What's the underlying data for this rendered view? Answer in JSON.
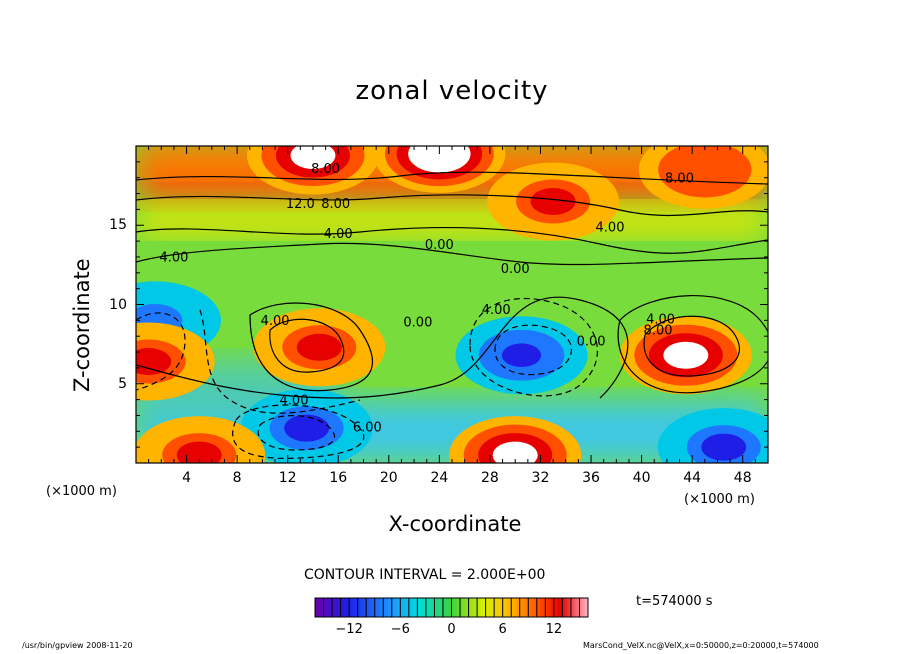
{
  "chart_data": {
    "type": "heatmap",
    "title": "zonal velocity",
    "xlabel": "X-coordinate",
    "ylabel": "Z-coordinate",
    "x_unit_label": "(×1000 m)",
    "x_ticks": [
      4,
      8,
      12,
      16,
      20,
      24,
      28,
      32,
      36,
      40,
      44,
      48
    ],
    "y_ticks": [
      5,
      10,
      15
    ],
    "xlim": [
      0,
      50
    ],
    "ylim": [
      0,
      20
    ],
    "contour_interval_text": "CONTOUR INTERVAL = 2.000E+00",
    "time_text": "t=574000 s",
    "colorbar": {
      "range": [
        -16,
        16
      ],
      "ticks": [
        -12,
        -6,
        0,
        6,
        12
      ],
      "tick_labels": [
        "−12",
        "−6",
        "0",
        "6",
        "12"
      ]
    },
    "contour_labels": [
      {
        "x": 15.0,
        "z": 18.3,
        "text": "8.00"
      },
      {
        "x": 43.0,
        "z": 17.7,
        "text": "8.00"
      },
      {
        "x": 13.0,
        "z": 16.1,
        "text": "12.0"
      },
      {
        "x": 15.8,
        "z": 16.1,
        "text": "8.00"
      },
      {
        "x": 16.0,
        "z": 14.2,
        "text": "4.00"
      },
      {
        "x": 37.5,
        "z": 14.6,
        "text": "4.00"
      },
      {
        "x": 3.0,
        "z": 12.7,
        "text": "4.00"
      },
      {
        "x": 24.0,
        "z": 13.5,
        "text": "0.00"
      },
      {
        "x": 30.0,
        "z": 12.0,
        "text": "0.00"
      },
      {
        "x": 11.0,
        "z": 8.7,
        "text": "4.00"
      },
      {
        "x": 22.3,
        "z": 8.6,
        "text": "0.00"
      },
      {
        "x": 28.5,
        "z": 9.4,
        "text": "4.00"
      },
      {
        "x": 36.0,
        "z": 7.4,
        "text": "0.00"
      },
      {
        "x": 41.5,
        "z": 8.8,
        "text": "4.00"
      },
      {
        "x": 41.3,
        "z": 8.1,
        "text": "8.00"
      },
      {
        "x": 12.5,
        "z": 3.7,
        "text": "4.00"
      },
      {
        "x": 18.3,
        "z": 2.0,
        "text": "6.00"
      }
    ],
    "features": [
      {
        "x": 30.5,
        "z": 6.8,
        "value": -14
      },
      {
        "x": 13.5,
        "z": 2.2,
        "value": -12
      },
      {
        "x": 46.5,
        "z": 1.0,
        "value": -13
      },
      {
        "x": 1.5,
        "z": 9.0,
        "value": -10
      },
      {
        "x": 43.5,
        "z": 6.8,
        "value": 13
      },
      {
        "x": 14.5,
        "z": 7.3,
        "value": 11
      },
      {
        "x": 30.0,
        "z": 0.5,
        "value": 13
      },
      {
        "x": 1.0,
        "z": 6.4,
        "value": 12
      },
      {
        "x": 24.0,
        "z": 19.5,
        "value": 16
      },
      {
        "x": 14.0,
        "z": 19.4,
        "value": 13
      },
      {
        "x": 5.0,
        "z": 0.5,
        "value": 11
      },
      {
        "x": 33.0,
        "z": 16.5,
        "value": 12
      },
      {
        "x": 45.0,
        "z": 18.5,
        "value": 10
      }
    ]
  },
  "footer": {
    "left": "/usr/bin/gpview   2008-11-20",
    "right": "MarsCond_VelX.nc@VelX,x=0:50000,z=0:20000,t=574000"
  }
}
